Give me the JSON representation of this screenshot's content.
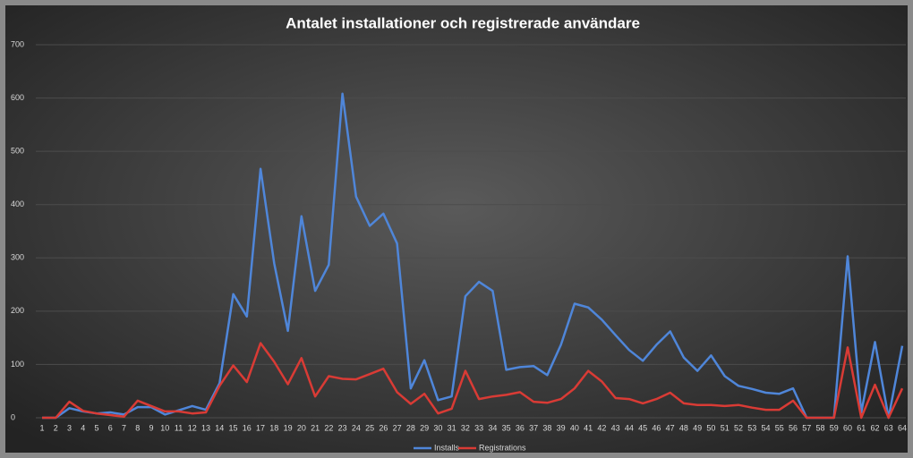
{
  "chart_data": {
    "type": "line",
    "title": "Antalet installationer och registrerade användare",
    "categories": [
      "1",
      "2",
      "3",
      "4",
      "5",
      "6",
      "7",
      "8",
      "9",
      "10",
      "11",
      "12",
      "13",
      "14",
      "15",
      "16",
      "17",
      "18",
      "19",
      "20",
      "21",
      "22",
      "23",
      "24",
      "25",
      "26",
      "27",
      "28",
      "29",
      "30",
      "31",
      "32",
      "33",
      "34",
      "35",
      "36",
      "37",
      "38",
      "39",
      "40",
      "41",
      "42",
      "43",
      "44",
      "45",
      "46",
      "47",
      "48",
      "49",
      "50",
      "51",
      "52",
      "53",
      "54",
      "55",
      "56",
      "57",
      "58",
      "59",
      "60",
      "61",
      "62",
      "63",
      "64"
    ],
    "series": [
      {
        "name": "Installs",
        "color": "#4f86d9",
        "values": [
          0,
          0,
          18,
          12,
          8,
          10,
          6,
          20,
          20,
          6,
          14,
          22,
          15,
          65,
          232,
          190,
          467,
          290,
          163,
          378,
          238,
          287,
          608,
          415,
          360,
          383,
          327,
          55,
          108,
          33,
          40,
          228,
          255,
          238,
          90,
          95,
          97,
          80,
          137,
          214,
          207,
          184,
          155,
          127,
          107,
          137,
          162,
          113,
          88,
          117,
          78,
          60,
          54,
          47,
          45,
          55,
          0,
          0,
          0,
          303,
          10,
          142,
          0,
          135
        ]
      },
      {
        "name": "Registrations",
        "color": "#d93b35",
        "values": [
          0,
          0,
          30,
          13,
          8,
          5,
          2,
          32,
          22,
          12,
          12,
          8,
          10,
          60,
          98,
          67,
          140,
          105,
          63,
          112,
          40,
          78,
          73,
          72,
          82,
          92,
          48,
          26,
          45,
          8,
          17,
          88,
          35,
          40,
          43,
          48,
          30,
          28,
          35,
          55,
          88,
          68,
          37,
          35,
          27,
          35,
          47,
          27,
          24,
          24,
          22,
          24,
          19,
          15,
          15,
          32,
          0,
          0,
          0,
          132,
          0,
          62,
          0,
          55
        ]
      }
    ],
    "ylim": [
      0,
      700
    ],
    "yticks": [
      0,
      100,
      200,
      300,
      400,
      500,
      600,
      700
    ],
    "grid": true,
    "legend": "bottom"
  }
}
